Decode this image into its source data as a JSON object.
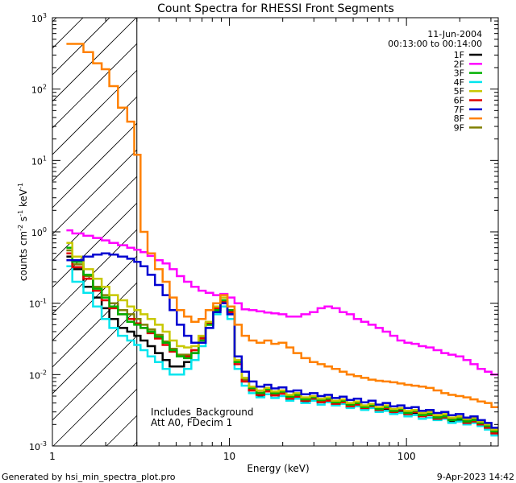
{
  "chart_data": {
    "type": "line",
    "title": "Count Spectra for RHESSI Front Segments",
    "xlabel": "Energy (keV)",
    "ylabel": {
      "base": "counts cm",
      "exp1": "-2",
      "mid": " s",
      "exp2": "-1",
      "mid2": " keV",
      "exp3": "-1"
    },
    "x_scale": "log",
    "y_scale": "log",
    "xlim": [
      1,
      330
    ],
    "ylim": [
      0.001,
      1000
    ],
    "x_ticks": [
      {
        "value": 1,
        "label": "1"
      },
      {
        "value": 10,
        "label": "10"
      },
      {
        "value": 100,
        "label": "100"
      }
    ],
    "y_ticks": [
      {
        "value": 0.001,
        "base": "10",
        "exp": "-3"
      },
      {
        "value": 0.01,
        "base": "10",
        "exp": "-2"
      },
      {
        "value": 0.1,
        "base": "10",
        "exp": "-1"
      },
      {
        "value": 1,
        "base": "10",
        "exp": "0"
      },
      {
        "value": 10,
        "base": "10",
        "exp": "1"
      },
      {
        "value": 100,
        "base": "10",
        "exp": "2"
      },
      {
        "value": 1000,
        "base": "10",
        "exp": "3"
      }
    ],
    "date": "11-Jun-2004",
    "time_range": "00:13:00 to 00:14:00",
    "annotation_lines": [
      "Includes_Background",
      "Att A0, FDecim 1"
    ],
    "attenuator_hatch_xmax": 3,
    "energy_bins": [
      1.2,
      1.4,
      1.6,
      1.8,
      2.0,
      2.2,
      2.5,
      2.8,
      3.0,
      3.3,
      3.6,
      4.0,
      4.4,
      4.8,
      5.3,
      5.8,
      6.4,
      7.0,
      7.7,
      8.5,
      9.3,
      10.2,
      11.2,
      12.3,
      13.5,
      15,
      16.5,
      18,
      20,
      22,
      24,
      27,
      30,
      33,
      36,
      40,
      44,
      48,
      53,
      58,
      64,
      70,
      77,
      85,
      93,
      102,
      112,
      123,
      135,
      150,
      165,
      180,
      200,
      220,
      240,
      265,
      290,
      315
    ],
    "series": [
      {
        "name": "1F",
        "color": "#000000",
        "values": [
          0.45,
          0.3,
          0.17,
          0.12,
          0.085,
          0.06,
          0.045,
          0.04,
          0.035,
          0.03,
          0.025,
          0.02,
          0.016,
          0.013,
          0.013,
          0.015,
          0.02,
          0.028,
          0.05,
          0.08,
          0.1,
          0.07,
          0.015,
          0.008,
          0.006,
          0.005,
          0.0058,
          0.0052,
          0.0055,
          0.0046,
          0.0049,
          0.0042,
          0.0046,
          0.0041,
          0.0043,
          0.0039,
          0.0041,
          0.0035,
          0.0038,
          0.0033,
          0.0035,
          0.0031,
          0.0033,
          0.0029,
          0.0031,
          0.0028,
          0.0029,
          0.0026,
          0.0027,
          0.0024,
          0.0025,
          0.0022,
          0.0023,
          0.0021,
          0.0022,
          0.002,
          0.0018,
          0.0015
        ]
      },
      {
        "name": "2F",
        "color": "#ff00ff",
        "values": [
          1.05,
          0.95,
          0.88,
          0.82,
          0.76,
          0.7,
          0.65,
          0.6,
          0.56,
          0.52,
          0.46,
          0.4,
          0.36,
          0.3,
          0.24,
          0.2,
          0.17,
          0.15,
          0.14,
          0.13,
          0.135,
          0.12,
          0.1,
          0.082,
          0.08,
          0.077,
          0.074,
          0.072,
          0.07,
          0.065,
          0.065,
          0.07,
          0.075,
          0.085,
          0.09,
          0.085,
          0.075,
          0.07,
          0.06,
          0.055,
          0.05,
          0.045,
          0.04,
          0.035,
          0.03,
          0.028,
          0.027,
          0.025,
          0.024,
          0.022,
          0.02,
          0.019,
          0.018,
          0.016,
          0.014,
          0.012,
          0.011,
          0.01
        ]
      },
      {
        "name": "3F",
        "color": "#00b000",
        "values": [
          0.6,
          0.38,
          0.25,
          0.16,
          0.12,
          0.09,
          0.07,
          0.055,
          0.05,
          0.045,
          0.04,
          0.034,
          0.028,
          0.022,
          0.018,
          0.017,
          0.02,
          0.03,
          0.05,
          0.08,
          0.11,
          0.08,
          0.015,
          0.009,
          0.0065,
          0.0055,
          0.0062,
          0.0055,
          0.0058,
          0.0049,
          0.0052,
          0.0045,
          0.0048,
          0.0044,
          0.0046,
          0.0041,
          0.0043,
          0.0038,
          0.004,
          0.0035,
          0.0037,
          0.0033,
          0.0035,
          0.0031,
          0.0033,
          0.0029,
          0.0031,
          0.0027,
          0.0028,
          0.0025,
          0.0026,
          0.0023,
          0.0024,
          0.0022,
          0.0023,
          0.0021,
          0.0019,
          0.0016
        ]
      },
      {
        "name": "4F",
        "color": "#00e5ee",
        "values": [
          0.33,
          0.2,
          0.14,
          0.09,
          0.06,
          0.045,
          0.035,
          0.03,
          0.026,
          0.022,
          0.018,
          0.015,
          0.012,
          0.01,
          0.01,
          0.012,
          0.016,
          0.025,
          0.045,
          0.07,
          0.09,
          0.06,
          0.012,
          0.007,
          0.0055,
          0.0048,
          0.0053,
          0.0047,
          0.005,
          0.0043,
          0.0046,
          0.004,
          0.0043,
          0.0038,
          0.0041,
          0.0037,
          0.0039,
          0.0034,
          0.0036,
          0.0032,
          0.0034,
          0.003,
          0.0031,
          0.0028,
          0.0029,
          0.0026,
          0.0027,
          0.0024,
          0.0025,
          0.0023,
          0.0024,
          0.0021,
          0.0022,
          0.002,
          0.0021,
          0.0019,
          0.0017,
          0.0014
        ]
      },
      {
        "name": "5F",
        "color": "#c8c800",
        "values": [
          0.7,
          0.45,
          0.3,
          0.22,
          0.17,
          0.13,
          0.11,
          0.09,
          0.08,
          0.07,
          0.06,
          0.05,
          0.04,
          0.03,
          0.025,
          0.024,
          0.025,
          0.035,
          0.055,
          0.09,
          0.12,
          0.09,
          0.016,
          0.009,
          0.0068,
          0.006,
          0.0065,
          0.0058,
          0.006,
          0.0052,
          0.0055,
          0.0048,
          0.005,
          0.0046,
          0.0048,
          0.0043,
          0.0045,
          0.004,
          0.0042,
          0.0037,
          0.0039,
          0.0035,
          0.0037,
          0.0033,
          0.0034,
          0.0031,
          0.0032,
          0.0029,
          0.003,
          0.0027,
          0.0028,
          0.0025,
          0.0026,
          0.0024,
          0.0025,
          0.0022,
          0.002,
          0.0017
        ]
      },
      {
        "name": "6F",
        "color": "#e00000",
        "values": [
          0.5,
          0.32,
          0.22,
          0.15,
          0.11,
          0.085,
          0.07,
          0.06,
          0.052,
          0.045,
          0.038,
          0.032,
          0.026,
          0.021,
          0.018,
          0.018,
          0.022,
          0.032,
          0.052,
          0.085,
          0.105,
          0.075,
          0.014,
          0.008,
          0.006,
          0.0052,
          0.0058,
          0.0051,
          0.0054,
          0.0046,
          0.0049,
          0.0043,
          0.0046,
          0.0041,
          0.0043,
          0.0039,
          0.0041,
          0.0036,
          0.0038,
          0.0034,
          0.0036,
          0.0032,
          0.0034,
          0.003,
          0.0032,
          0.0028,
          0.003,
          0.0026,
          0.0027,
          0.0024,
          0.0025,
          0.0023,
          0.0024,
          0.0021,
          0.0022,
          0.002,
          0.0018,
          0.0015
        ]
      },
      {
        "name": "7F",
        "color": "#0000d0",
        "values": [
          0.4,
          0.4,
          0.45,
          0.48,
          0.5,
          0.48,
          0.45,
          0.42,
          0.38,
          0.33,
          0.25,
          0.18,
          0.13,
          0.08,
          0.05,
          0.035,
          0.028,
          0.028,
          0.045,
          0.075,
          0.1,
          0.07,
          0.018,
          0.011,
          0.008,
          0.0068,
          0.0072,
          0.0064,
          0.0066,
          0.0058,
          0.006,
          0.0053,
          0.0055,
          0.005,
          0.0052,
          0.0047,
          0.0049,
          0.0044,
          0.0046,
          0.0041,
          0.0043,
          0.0038,
          0.004,
          0.0036,
          0.0037,
          0.0034,
          0.0035,
          0.0031,
          0.0032,
          0.0029,
          0.003,
          0.0027,
          0.0028,
          0.0025,
          0.0026,
          0.0023,
          0.0021,
          0.0018
        ]
      },
      {
        "name": "8F",
        "color": "#ff8000",
        "values": [
          430,
          430,
          330,
          230,
          190,
          110,
          55,
          35,
          12,
          1.0,
          0.5,
          0.3,
          0.2,
          0.12,
          0.08,
          0.065,
          0.055,
          0.06,
          0.08,
          0.1,
          0.13,
          0.09,
          0.05,
          0.035,
          0.03,
          0.028,
          0.03,
          0.027,
          0.028,
          0.024,
          0.02,
          0.017,
          0.015,
          0.014,
          0.013,
          0.012,
          0.011,
          0.01,
          0.0095,
          0.009,
          0.0085,
          0.0082,
          0.008,
          0.0078,
          0.0075,
          0.0072,
          0.007,
          0.0068,
          0.0065,
          0.006,
          0.0055,
          0.0052,
          0.005,
          0.0048,
          0.0045,
          0.0042,
          0.004,
          0.0035
        ]
      },
      {
        "name": "9F",
        "color": "#808000",
        "values": [
          0.55,
          0.35,
          0.24,
          0.17,
          0.13,
          0.1,
          0.08,
          0.07,
          0.06,
          0.05,
          0.043,
          0.036,
          0.029,
          0.023,
          0.019,
          0.019,
          0.022,
          0.033,
          0.053,
          0.085,
          0.11,
          0.078,
          0.015,
          0.0085,
          0.0064,
          0.0056,
          0.0062,
          0.0054,
          0.0057,
          0.0049,
          0.0052,
          0.0046,
          0.0048,
          0.0043,
          0.0045,
          0.0041,
          0.0043,
          0.0038,
          0.004,
          0.0036,
          0.0038,
          0.0034,
          0.0035,
          0.0032,
          0.0033,
          0.003,
          0.0031,
          0.0028,
          0.0029,
          0.0026,
          0.0027,
          0.0024,
          0.0025,
          0.0023,
          0.0024,
          0.0021,
          0.0019,
          0.0016
        ]
      }
    ]
  },
  "footer": {
    "left": "Generated by hsi_min_spectra_plot.pro",
    "right": "9-Apr-2023 14:42"
  }
}
